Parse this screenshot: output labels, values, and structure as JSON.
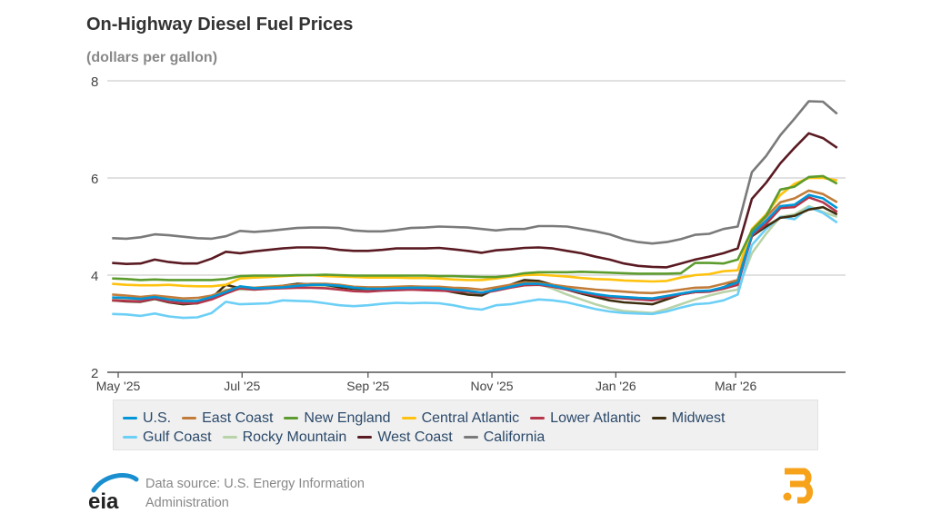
{
  "title": "On-Highway Diesel Fuel Prices",
  "subtitle": "(dollars per gallon)",
  "footer": {
    "source_line1": "Data source: U.S. Energy Information",
    "source_line2": "Administration",
    "logo_text": "eia"
  },
  "chart_data": {
    "type": "line",
    "title": "On-Highway Diesel Fuel Prices",
    "ylabel": "(dollars per gallon)",
    "ylim": [
      2,
      8
    ],
    "yticks": [
      "2",
      "4",
      "6",
      "8"
    ],
    "xticks": [
      {
        "date": "2025-05-01",
        "label": "May '25"
      },
      {
        "date": "2025-07-01",
        "label": "Jul '25"
      },
      {
        "date": "2025-09-01",
        "label": "Sep '25"
      },
      {
        "date": "2025-11-01",
        "label": "Nov '25"
      },
      {
        "date": "2026-01-01",
        "label": "Jan '26"
      },
      {
        "date": "2026-03-01",
        "label": "Mar '26"
      }
    ],
    "grid": true,
    "legend_position": "bottom",
    "x": [
      "2025-04-28",
      "2025-05-05",
      "2025-05-12",
      "2025-05-19",
      "2025-05-26",
      "2025-06-02",
      "2025-06-09",
      "2025-06-16",
      "2025-06-23",
      "2025-06-30",
      "2025-07-07",
      "2025-07-14",
      "2025-07-21",
      "2025-07-28",
      "2025-08-04",
      "2025-08-11",
      "2025-08-18",
      "2025-08-25",
      "2025-09-01",
      "2025-09-08",
      "2025-09-15",
      "2025-09-22",
      "2025-09-29",
      "2025-10-06",
      "2025-10-13",
      "2025-10-20",
      "2025-10-27",
      "2025-11-03",
      "2025-11-10",
      "2025-11-17",
      "2025-11-24",
      "2025-12-01",
      "2025-12-08",
      "2025-12-15",
      "2025-12-22",
      "2025-12-29",
      "2026-01-05",
      "2026-01-12",
      "2026-01-19",
      "2026-01-26",
      "2026-02-02",
      "2026-02-09",
      "2026-02-16",
      "2026-02-23",
      "2026-03-02",
      "2026-03-09",
      "2026-03-16",
      "2026-03-23",
      "2026-03-30",
      "2026-04-06",
      "2026-04-13",
      "2026-04-20"
    ],
    "series": [
      {
        "name": "U.S.",
        "color": "#0096d7",
        "values": [
          3.54,
          3.53,
          3.51,
          3.55,
          3.5,
          3.47,
          3.47,
          3.55,
          3.65,
          3.77,
          3.73,
          3.74,
          3.75,
          3.78,
          3.8,
          3.8,
          3.78,
          3.74,
          3.72,
          3.72,
          3.73,
          3.74,
          3.74,
          3.73,
          3.7,
          3.68,
          3.64,
          3.7,
          3.76,
          3.82,
          3.82,
          3.78,
          3.72,
          3.66,
          3.61,
          3.57,
          3.55,
          3.53,
          3.52,
          3.57,
          3.62,
          3.67,
          3.68,
          3.75,
          3.85,
          4.85,
          5.12,
          5.42,
          5.45,
          5.65,
          5.58,
          5.38
        ]
      },
      {
        "name": "East Coast",
        "color": "#c27c3a",
        "values": [
          3.6,
          3.58,
          3.55,
          3.58,
          3.55,
          3.52,
          3.53,
          3.58,
          3.68,
          3.76,
          3.74,
          3.76,
          3.78,
          3.8,
          3.82,
          3.82,
          3.8,
          3.76,
          3.75,
          3.75,
          3.76,
          3.77,
          3.76,
          3.76,
          3.74,
          3.73,
          3.7,
          3.75,
          3.8,
          3.85,
          3.84,
          3.8,
          3.76,
          3.73,
          3.7,
          3.68,
          3.66,
          3.64,
          3.63,
          3.66,
          3.7,
          3.74,
          3.75,
          3.82,
          3.9,
          4.9,
          5.2,
          5.5,
          5.58,
          5.74,
          5.67,
          5.5
        ]
      },
      {
        "name": "New England",
        "color": "#5c9c2e",
        "values": [
          3.93,
          3.92,
          3.9,
          3.91,
          3.9,
          3.9,
          3.9,
          3.9,
          3.92,
          3.98,
          3.99,
          3.99,
          3.99,
          4.0,
          4.0,
          4.01,
          4.0,
          3.99,
          3.99,
          3.99,
          3.99,
          3.99,
          3.99,
          3.98,
          3.98,
          3.97,
          3.96,
          3.96,
          3.99,
          4.04,
          4.06,
          4.06,
          4.06,
          4.07,
          4.06,
          4.05,
          4.04,
          4.03,
          4.03,
          4.03,
          4.04,
          4.25,
          4.25,
          4.24,
          4.32,
          4.92,
          5.22,
          5.76,
          5.82,
          6.02,
          6.04,
          5.88
        ]
      },
      {
        "name": "Central Atlantic",
        "color": "#ffc20e",
        "values": [
          3.82,
          3.8,
          3.79,
          3.79,
          3.8,
          3.78,
          3.77,
          3.77,
          3.8,
          3.93,
          3.95,
          3.96,
          3.98,
          3.99,
          4.0,
          3.98,
          3.97,
          3.96,
          3.95,
          3.95,
          3.95,
          3.94,
          3.94,
          3.93,
          3.91,
          3.9,
          3.9,
          3.93,
          3.97,
          4.0,
          4.01,
          3.99,
          3.97,
          3.94,
          3.92,
          3.91,
          3.89,
          3.88,
          3.87,
          3.88,
          3.95,
          4.0,
          4.02,
          4.08,
          4.1,
          4.95,
          5.25,
          5.65,
          5.88,
          6.0,
          6.0,
          5.95
        ]
      },
      {
        "name": "Lower Atlantic",
        "color": "#b5364c",
        "values": [
          3.48,
          3.47,
          3.46,
          3.52,
          3.45,
          3.42,
          3.42,
          3.5,
          3.62,
          3.73,
          3.7,
          3.72,
          3.73,
          3.74,
          3.74,
          3.73,
          3.7,
          3.67,
          3.66,
          3.68,
          3.69,
          3.7,
          3.69,
          3.68,
          3.67,
          3.66,
          3.63,
          3.68,
          3.74,
          3.79,
          3.8,
          3.76,
          3.7,
          3.64,
          3.58,
          3.54,
          3.52,
          3.5,
          3.48,
          3.54,
          3.6,
          3.65,
          3.66,
          3.72,
          3.8,
          4.82,
          5.05,
          5.38,
          5.4,
          5.6,
          5.5,
          5.3
        ]
      },
      {
        "name": "Midwest",
        "color": "#3d2e0f",
        "values": [
          3.48,
          3.46,
          3.45,
          3.51,
          3.44,
          3.4,
          3.42,
          3.53,
          3.8,
          3.73,
          3.72,
          3.74,
          3.78,
          3.82,
          3.81,
          3.8,
          3.75,
          3.72,
          3.71,
          3.72,
          3.73,
          3.74,
          3.73,
          3.7,
          3.65,
          3.6,
          3.58,
          3.72,
          3.8,
          3.9,
          3.88,
          3.8,
          3.7,
          3.62,
          3.55,
          3.48,
          3.44,
          3.42,
          3.4,
          3.5,
          3.6,
          3.65,
          3.66,
          3.75,
          3.88,
          4.8,
          5.0,
          5.18,
          5.22,
          5.35,
          5.4,
          5.25
        ]
      },
      {
        "name": "Gulf Coast",
        "color": "#6ccff6",
        "values": [
          3.2,
          3.19,
          3.16,
          3.21,
          3.15,
          3.12,
          3.13,
          3.22,
          3.45,
          3.4,
          3.41,
          3.42,
          3.48,
          3.47,
          3.46,
          3.42,
          3.38,
          3.36,
          3.38,
          3.41,
          3.43,
          3.42,
          3.43,
          3.42,
          3.38,
          3.32,
          3.29,
          3.38,
          3.4,
          3.45,
          3.5,
          3.48,
          3.44,
          3.37,
          3.3,
          3.25,
          3.22,
          3.21,
          3.2,
          3.25,
          3.33,
          3.4,
          3.42,
          3.48,
          3.6,
          4.62,
          4.95,
          5.2,
          5.15,
          5.4,
          5.28,
          5.08
        ]
      },
      {
        "name": "Rocky Mountain",
        "color": "#b8d3a8",
        "values": [
          3.5,
          3.49,
          3.48,
          3.53,
          3.48,
          3.45,
          3.46,
          3.52,
          3.7,
          3.7,
          3.7,
          3.72,
          3.75,
          3.78,
          3.79,
          3.78,
          3.75,
          3.72,
          3.72,
          3.73,
          3.75,
          3.76,
          3.75,
          3.72,
          3.68,
          3.62,
          3.6,
          3.7,
          3.78,
          3.85,
          3.82,
          3.72,
          3.6,
          3.5,
          3.4,
          3.32,
          3.26,
          3.24,
          3.22,
          3.3,
          3.4,
          3.5,
          3.58,
          3.65,
          3.7,
          4.45,
          4.85,
          5.2,
          5.25,
          5.42,
          5.3,
          5.2
        ]
      },
      {
        "name": "West Coast",
        "color": "#5a1a22",
        "values": [
          4.25,
          4.23,
          4.24,
          4.32,
          4.27,
          4.24,
          4.24,
          4.34,
          4.48,
          4.45,
          4.49,
          4.52,
          4.55,
          4.57,
          4.57,
          4.56,
          4.52,
          4.5,
          4.5,
          4.52,
          4.55,
          4.55,
          4.55,
          4.56,
          4.53,
          4.5,
          4.46,
          4.51,
          4.53,
          4.56,
          4.57,
          4.55,
          4.5,
          4.45,
          4.38,
          4.32,
          4.24,
          4.19,
          4.17,
          4.16,
          4.24,
          4.32,
          4.38,
          4.45,
          4.55,
          5.57,
          5.9,
          6.3,
          6.62,
          6.92,
          6.82,
          6.62
        ]
      },
      {
        "name": "California",
        "color": "#7a7a7a",
        "values": [
          4.76,
          4.75,
          4.78,
          4.84,
          4.82,
          4.79,
          4.76,
          4.75,
          4.8,
          4.91,
          4.89,
          4.91,
          4.94,
          4.97,
          4.98,
          4.98,
          4.97,
          4.92,
          4.9,
          4.9,
          4.93,
          4.97,
          4.98,
          5.0,
          4.99,
          4.98,
          4.95,
          4.92,
          4.95,
          4.95,
          5.01,
          5.01,
          5.0,
          4.95,
          4.9,
          4.84,
          4.74,
          4.68,
          4.65,
          4.68,
          4.74,
          4.83,
          4.85,
          4.95,
          5.0,
          6.12,
          6.45,
          6.88,
          7.22,
          7.58,
          7.57,
          7.32
        ]
      }
    ]
  }
}
